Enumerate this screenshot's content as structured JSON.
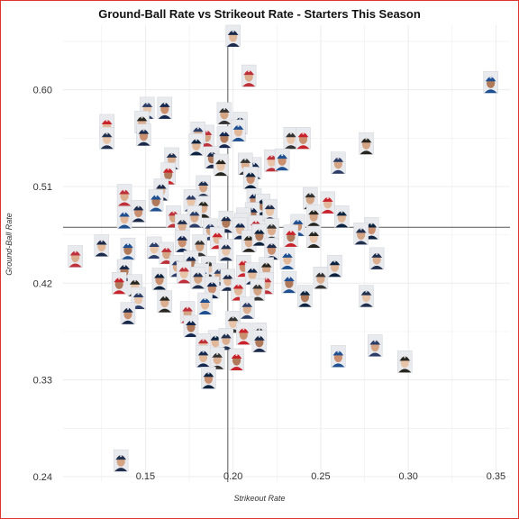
{
  "chart_data": {
    "type": "scatter",
    "title": "Ground-Ball Rate vs Strikeout Rate - Starters This Season",
    "xlabel": "Strikeout Rate",
    "ylabel": "Ground-Ball Rate",
    "xlim": [
      0.103,
      0.358
    ],
    "ylim": [
      0.235,
      0.66
    ],
    "x_ticks": [
      "0.15",
      "0.20",
      "0.25",
      "0.30",
      "0.35"
    ],
    "y_ticks": [
      "0.24",
      "0.33",
      "0.42",
      "0.51",
      "0.60"
    ],
    "grid": true,
    "reference_lines": {
      "x": 0.197,
      "y": 0.472
    },
    "marker": "player-headshot-icon",
    "colors": {
      "grid": "#ececec",
      "reference": "#555555",
      "border": "#e0342e"
    },
    "points": [
      {
        "x": 0.2,
        "y": 0.65
      },
      {
        "x": 0.209,
        "y": 0.613
      },
      {
        "x": 0.347,
        "y": 0.607
      },
      {
        "x": 0.151,
        "y": 0.583
      },
      {
        "x": 0.161,
        "y": 0.583
      },
      {
        "x": 0.195,
        "y": 0.578
      },
      {
        "x": 0.128,
        "y": 0.567
      },
      {
        "x": 0.148,
        "y": 0.57
      },
      {
        "x": 0.204,
        "y": 0.569
      },
      {
        "x": 0.128,
        "y": 0.555
      },
      {
        "x": 0.149,
        "y": 0.558
      },
      {
        "x": 0.185,
        "y": 0.557
      },
      {
        "x": 0.203,
        "y": 0.562
      },
      {
        "x": 0.18,
        "y": 0.56
      },
      {
        "x": 0.195,
        "y": 0.556
      },
      {
        "x": 0.233,
        "y": 0.555
      },
      {
        "x": 0.24,
        "y": 0.555
      },
      {
        "x": 0.276,
        "y": 0.55
      },
      {
        "x": 0.179,
        "y": 0.549
      },
      {
        "x": 0.165,
        "y": 0.536
      },
      {
        "x": 0.188,
        "y": 0.537
      },
      {
        "x": 0.222,
        "y": 0.534
      },
      {
        "x": 0.228,
        "y": 0.535
      },
      {
        "x": 0.26,
        "y": 0.532
      },
      {
        "x": 0.212,
        "y": 0.527
      },
      {
        "x": 0.207,
        "y": 0.531
      },
      {
        "x": 0.163,
        "y": 0.522
      },
      {
        "x": 0.193,
        "y": 0.53
      },
      {
        "x": 0.21,
        "y": 0.518
      },
      {
        "x": 0.183,
        "y": 0.51
      },
      {
        "x": 0.159,
        "y": 0.507
      },
      {
        "x": 0.138,
        "y": 0.502
      },
      {
        "x": 0.156,
        "y": 0.497
      },
      {
        "x": 0.176,
        "y": 0.497
      },
      {
        "x": 0.212,
        "y": 0.498
      },
      {
        "x": 0.244,
        "y": 0.499
      },
      {
        "x": 0.254,
        "y": 0.495
      },
      {
        "x": 0.183,
        "y": 0.491
      },
      {
        "x": 0.217,
        "y": 0.493
      },
      {
        "x": 0.221,
        "y": 0.488
      },
      {
        "x": 0.146,
        "y": 0.487
      },
      {
        "x": 0.166,
        "y": 0.482
      },
      {
        "x": 0.138,
        "y": 0.481
      },
      {
        "x": 0.178,
        "y": 0.482
      },
      {
        "x": 0.211,
        "y": 0.485
      },
      {
        "x": 0.206,
        "y": 0.48
      },
      {
        "x": 0.205,
        "y": 0.475
      },
      {
        "x": 0.246,
        "y": 0.483
      },
      {
        "x": 0.262,
        "y": 0.482
      },
      {
        "x": 0.171,
        "y": 0.474
      },
      {
        "x": 0.196,
        "y": 0.477
      },
      {
        "x": 0.213,
        "y": 0.473
      },
      {
        "x": 0.237,
        "y": 0.474
      },
      {
        "x": 0.187,
        "y": 0.47
      },
      {
        "x": 0.204,
        "y": 0.471
      },
      {
        "x": 0.222,
        "y": 0.47
      },
      {
        "x": 0.233,
        "y": 0.464
      },
      {
        "x": 0.246,
        "y": 0.463
      },
      {
        "x": 0.279,
        "y": 0.471
      },
      {
        "x": 0.273,
        "y": 0.466
      },
      {
        "x": 0.125,
        "y": 0.455
      },
      {
        "x": 0.11,
        "y": 0.445
      },
      {
        "x": 0.14,
        "y": 0.452
      },
      {
        "x": 0.155,
        "y": 0.453
      },
      {
        "x": 0.171,
        "y": 0.459
      },
      {
        "x": 0.181,
        "y": 0.455
      },
      {
        "x": 0.191,
        "y": 0.462
      },
      {
        "x": 0.209,
        "y": 0.459
      },
      {
        "x": 0.215,
        "y": 0.465
      },
      {
        "x": 0.196,
        "y": 0.451
      },
      {
        "x": 0.222,
        "y": 0.452
      },
      {
        "x": 0.162,
        "y": 0.448
      },
      {
        "x": 0.231,
        "y": 0.443
      },
      {
        "x": 0.168,
        "y": 0.436
      },
      {
        "x": 0.176,
        "y": 0.44
      },
      {
        "x": 0.186,
        "y": 0.435
      },
      {
        "x": 0.206,
        "y": 0.436
      },
      {
        "x": 0.219,
        "y": 0.434
      },
      {
        "x": 0.258,
        "y": 0.436
      },
      {
        "x": 0.282,
        "y": 0.443
      },
      {
        "x": 0.138,
        "y": 0.432
      },
      {
        "x": 0.172,
        "y": 0.43
      },
      {
        "x": 0.182,
        "y": 0.428
      },
      {
        "x": 0.192,
        "y": 0.428
      },
      {
        "x": 0.211,
        "y": 0.429
      },
      {
        "x": 0.25,
        "y": 0.425
      },
      {
        "x": 0.135,
        "y": 0.42
      },
      {
        "x": 0.144,
        "y": 0.418
      },
      {
        "x": 0.158,
        "y": 0.424
      },
      {
        "x": 0.18,
        "y": 0.425
      },
      {
        "x": 0.197,
        "y": 0.423
      },
      {
        "x": 0.219,
        "y": 0.42
      },
      {
        "x": 0.232,
        "y": 0.421
      },
      {
        "x": 0.146,
        "y": 0.406
      },
      {
        "x": 0.188,
        "y": 0.416
      },
      {
        "x": 0.214,
        "y": 0.414
      },
      {
        "x": 0.203,
        "y": 0.414
      },
      {
        "x": 0.161,
        "y": 0.403
      },
      {
        "x": 0.241,
        "y": 0.408
      },
      {
        "x": 0.276,
        "y": 0.408
      },
      {
        "x": 0.14,
        "y": 0.392
      },
      {
        "x": 0.174,
        "y": 0.393
      },
      {
        "x": 0.184,
        "y": 0.401
      },
      {
        "x": 0.208,
        "y": 0.397
      },
      {
        "x": 0.176,
        "y": 0.38
      },
      {
        "x": 0.2,
        "y": 0.384
      },
      {
        "x": 0.206,
        "y": 0.373
      },
      {
        "x": 0.215,
        "y": 0.373
      },
      {
        "x": 0.19,
        "y": 0.366
      },
      {
        "x": 0.196,
        "y": 0.368
      },
      {
        "x": 0.215,
        "y": 0.366
      },
      {
        "x": 0.183,
        "y": 0.363
      },
      {
        "x": 0.26,
        "y": 0.352
      },
      {
        "x": 0.281,
        "y": 0.362
      },
      {
        "x": 0.183,
        "y": 0.352
      },
      {
        "x": 0.191,
        "y": 0.35
      },
      {
        "x": 0.202,
        "y": 0.349
      },
      {
        "x": 0.298,
        "y": 0.347
      },
      {
        "x": 0.186,
        "y": 0.332
      },
      {
        "x": 0.136,
        "y": 0.255
      }
    ]
  }
}
